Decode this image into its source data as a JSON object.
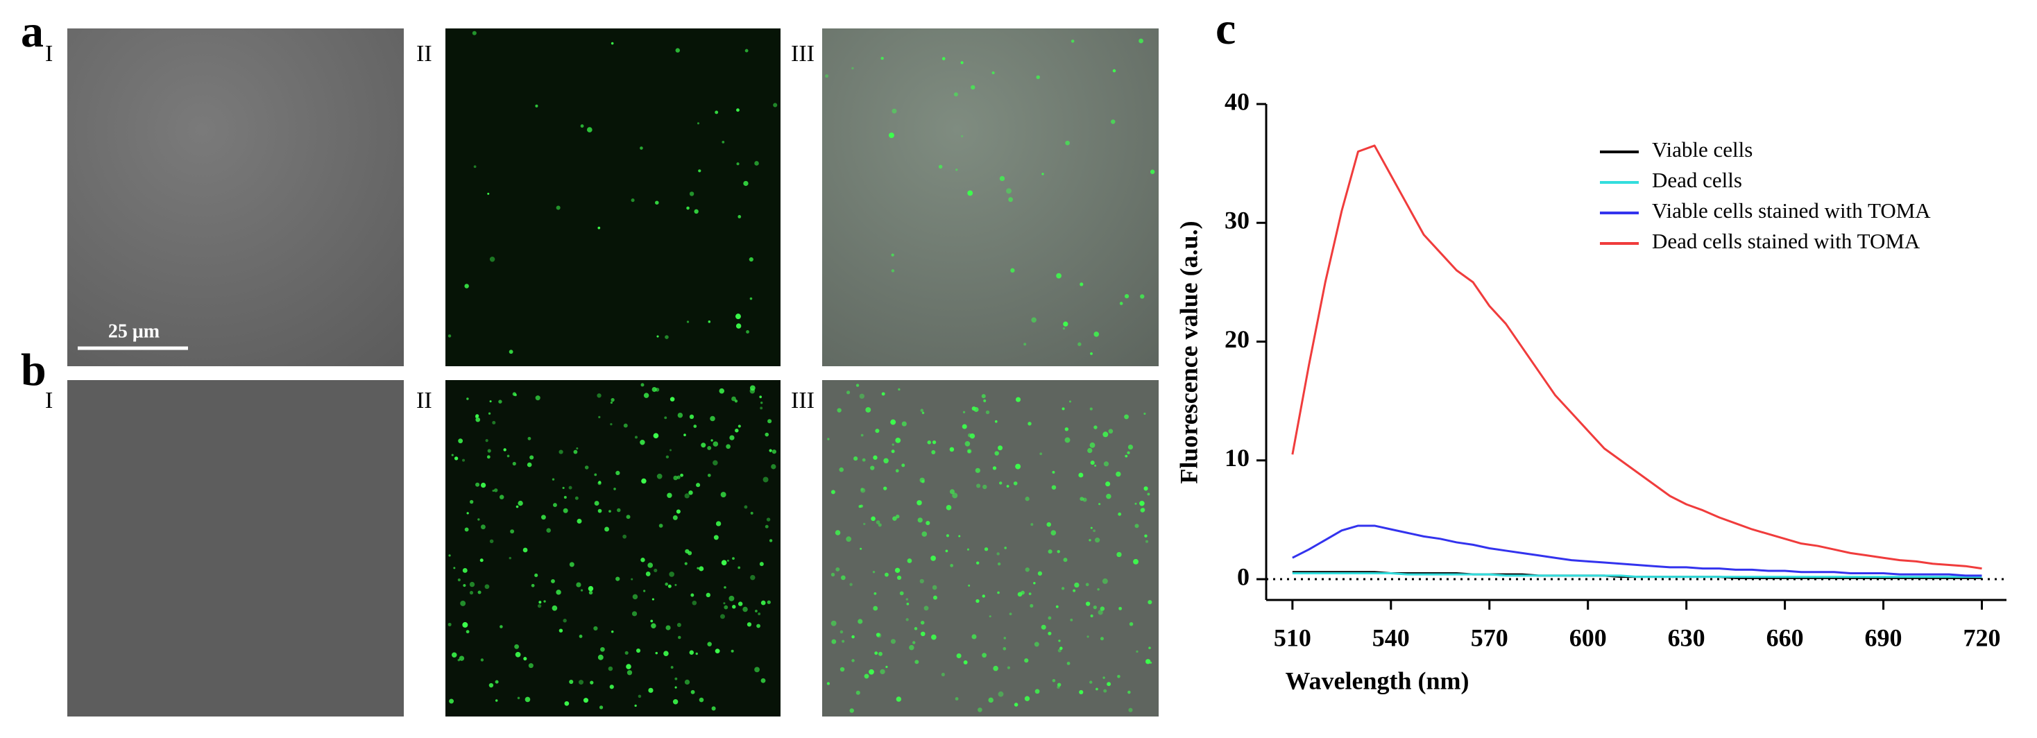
{
  "figure": {
    "panel_labels": [
      "a",
      "b",
      "c"
    ],
    "column_labels": [
      "I",
      "II",
      "III"
    ],
    "scale_bar": "25 μm"
  },
  "chart_data": {
    "type": "line",
    "x_label": "Wavelength (nm)",
    "y_label": "Fluorescence value (a.u.)",
    "x": [
      510,
      515,
      520,
      525,
      530,
      535,
      540,
      545,
      550,
      555,
      560,
      565,
      570,
      575,
      580,
      585,
      590,
      595,
      600,
      605,
      610,
      615,
      620,
      625,
      630,
      635,
      640,
      645,
      650,
      655,
      660,
      665,
      670,
      675,
      680,
      685,
      690,
      695,
      700,
      705,
      710,
      715,
      720
    ],
    "series": [
      {
        "name": "Viable cells",
        "color": "#000000",
        "values": [
          0.6,
          0.6,
          0.6,
          0.6,
          0.6,
          0.6,
          0.5,
          0.5,
          0.5,
          0.5,
          0.5,
          0.4,
          0.4,
          0.4,
          0.4,
          0.3,
          0.3,
          0.3,
          0.3,
          0.3,
          0.2,
          0.2,
          0.2,
          0.2,
          0.2,
          0.2,
          0.2,
          0.1,
          0.1,
          0.1,
          0.1,
          0.1,
          0.1,
          0.1,
          0.1,
          0.1,
          0.1,
          0.1,
          0.1,
          0.1,
          0.1,
          0.1,
          0.1
        ]
      },
      {
        "name": "Dead cells",
        "color": "#33dddd",
        "values": [
          0.5,
          0.5,
          0.5,
          0.5,
          0.5,
          0.5,
          0.5,
          0.4,
          0.4,
          0.4,
          0.4,
          0.4,
          0.4,
          0.3,
          0.3,
          0.3,
          0.3,
          0.3,
          0.3,
          0.3,
          0.3,
          0.2,
          0.2,
          0.2,
          0.2,
          0.2,
          0.2,
          0.2,
          0.2,
          0.2,
          0.2,
          0.2,
          0.2,
          0.2,
          0.2,
          0.2,
          0.2,
          0.2,
          0.2,
          0.2,
          0.2,
          0.2,
          0.2
        ]
      },
      {
        "name": "Viable cells stained with TOMA",
        "color": "#3333ee",
        "values": [
          1.8,
          2.5,
          3.3,
          4.1,
          4.5,
          4.5,
          4.2,
          3.9,
          3.6,
          3.4,
          3.1,
          2.9,
          2.6,
          2.4,
          2.2,
          2.0,
          1.8,
          1.6,
          1.5,
          1.4,
          1.3,
          1.2,
          1.1,
          1.0,
          1.0,
          0.9,
          0.9,
          0.8,
          0.8,
          0.7,
          0.7,
          0.6,
          0.6,
          0.6,
          0.5,
          0.5,
          0.5,
          0.4,
          0.4,
          0.4,
          0.4,
          0.3,
          0.3
        ]
      },
      {
        "name": "Dead cells stained with TOMA",
        "color": "#f03c3c",
        "values": [
          10.5,
          18,
          25,
          31,
          36,
          36.5,
          34,
          31.5,
          29,
          27.5,
          26,
          25,
          23,
          21.5,
          19.5,
          17.5,
          15.5,
          14,
          12.5,
          11,
          10,
          9,
          8,
          7,
          6.3,
          5.8,
          5.2,
          4.7,
          4.2,
          3.8,
          3.4,
          3,
          2.8,
          2.5,
          2.2,
          2,
          1.8,
          1.6,
          1.5,
          1.3,
          1.2,
          1.1,
          0.9
        ]
      }
    ],
    "xlim": [
      502,
      727.5
    ],
    "xticks": [
      510,
      540,
      570,
      600,
      630,
      660,
      690,
      720
    ],
    "ylim": [
      -1.75,
      40
    ],
    "yticks": [
      0,
      10,
      20,
      30,
      40
    ]
  }
}
